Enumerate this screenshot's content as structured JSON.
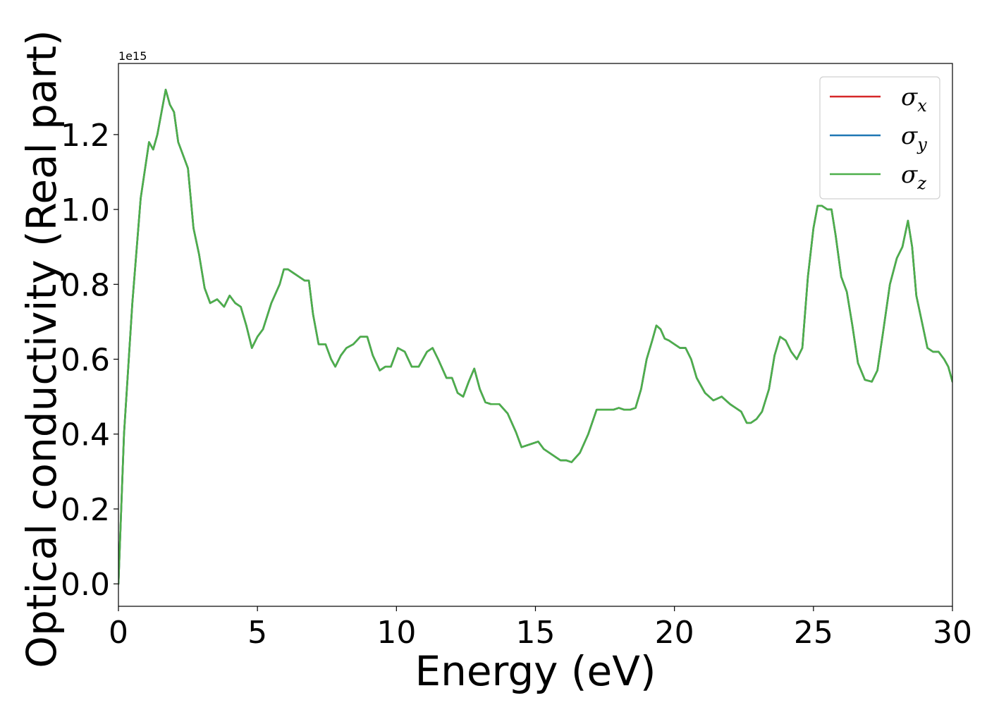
{
  "chart_data": {
    "type": "line",
    "xlabel": "Energy (eV)",
    "ylabel": "Optical conductivity (Real part)",
    "y_offset_text": "1e15",
    "y_scale_factor": 1000000000000000.0,
    "xlim": [
      0,
      30
    ],
    "ylim": [
      -0.06,
      1.39
    ],
    "xticks": [
      0,
      5,
      10,
      15,
      20,
      25,
      30
    ],
    "xtick_labels": [
      "0",
      "5",
      "10",
      "15",
      "20",
      "25",
      "30"
    ],
    "yticks": [
      0.0,
      0.2,
      0.4,
      0.6,
      0.8,
      1.0,
      1.2
    ],
    "ytick_labels": [
      "0.0",
      "0.2",
      "0.4",
      "0.6",
      "0.8",
      "1.0",
      "1.2"
    ],
    "grid": false,
    "legend_position": "top-right",
    "legend": [
      {
        "base": "σ",
        "sub": "x",
        "color": "#d62728"
      },
      {
        "base": "σ",
        "sub": "y",
        "color": "#1f77b4"
      },
      {
        "base": "σ",
        "sub": "z",
        "color": "#4daf4a"
      }
    ],
    "series": [
      {
        "color": "#d62728"
      },
      {
        "color": "#1f77b4"
      },
      {
        "color": "#4daf4a"
      }
    ],
    "x": [
      0,
      0.2,
      0.5,
      0.8,
      1.1,
      1.25,
      1.4,
      1.55,
      1.7,
      1.85,
      2.0,
      2.15,
      2.3,
      2.5,
      2.7,
      2.9,
      3.1,
      3.3,
      3.55,
      3.8,
      4.0,
      4.2,
      4.4,
      4.6,
      4.8,
      5.0,
      5.2,
      5.5,
      5.8,
      5.95,
      6.1,
      6.3,
      6.5,
      6.7,
      6.85,
      7.0,
      7.2,
      7.45,
      7.65,
      7.8,
      8.0,
      8.2,
      8.45,
      8.7,
      8.95,
      9.15,
      9.4,
      9.6,
      9.8,
      10.05,
      10.3,
      10.55,
      10.8,
      11.1,
      11.3,
      11.5,
      11.8,
      12.0,
      12.2,
      12.4,
      12.6,
      12.8,
      13.0,
      13.2,
      13.4,
      13.7,
      14.0,
      14.3,
      14.5,
      14.7,
      14.9,
      15.1,
      15.3,
      15.6,
      15.9,
      16.1,
      16.3,
      16.6,
      16.9,
      17.2,
      17.5,
      17.8,
      18.0,
      18.2,
      18.4,
      18.6,
      18.8,
      19.0,
      19.2,
      19.35,
      19.5,
      19.65,
      19.8,
      20.0,
      20.2,
      20.4,
      20.6,
      20.8,
      21.1,
      21.4,
      21.7,
      22.0,
      22.2,
      22.4,
      22.6,
      22.75,
      22.95,
      23.15,
      23.4,
      23.6,
      23.8,
      24.0,
      24.2,
      24.4,
      24.6,
      24.8,
      25.0,
      25.15,
      25.3,
      25.5,
      25.65,
      25.8,
      26.0,
      26.2,
      26.4,
      26.6,
      26.85,
      27.1,
      27.3,
      27.5,
      27.75,
      28.0,
      28.2,
      28.4,
      28.55,
      28.7,
      28.9,
      29.1,
      29.3,
      29.5,
      29.7,
      29.85,
      30.0
    ],
    "y": [
      0.0,
      0.4,
      0.75,
      1.03,
      1.18,
      1.16,
      1.2,
      1.26,
      1.32,
      1.28,
      1.26,
      1.18,
      1.15,
      1.11,
      0.95,
      0.88,
      0.79,
      0.75,
      0.76,
      0.74,
      0.77,
      0.75,
      0.74,
      0.69,
      0.63,
      0.66,
      0.68,
      0.75,
      0.8,
      0.84,
      0.84,
      0.83,
      0.82,
      0.81,
      0.81,
      0.72,
      0.64,
      0.64,
      0.6,
      0.58,
      0.61,
      0.63,
      0.64,
      0.66,
      0.66,
      0.61,
      0.57,
      0.58,
      0.58,
      0.63,
      0.62,
      0.58,
      0.58,
      0.62,
      0.63,
      0.6,
      0.55,
      0.55,
      0.51,
      0.5,
      0.54,
      0.575,
      0.52,
      0.485,
      0.48,
      0.48,
      0.455,
      0.405,
      0.365,
      0.37,
      0.375,
      0.38,
      0.36,
      0.345,
      0.33,
      0.33,
      0.325,
      0.35,
      0.4,
      0.465,
      0.465,
      0.465,
      0.47,
      0.465,
      0.465,
      0.47,
      0.52,
      0.6,
      0.65,
      0.69,
      0.68,
      0.655,
      0.65,
      0.64,
      0.63,
      0.63,
      0.6,
      0.55,
      0.51,
      0.49,
      0.5,
      0.48,
      0.47,
      0.46,
      0.43,
      0.43,
      0.44,
      0.46,
      0.52,
      0.61,
      0.66,
      0.65,
      0.62,
      0.6,
      0.63,
      0.82,
      0.95,
      1.01,
      1.01,
      1.0,
      1.0,
      0.93,
      0.82,
      0.78,
      0.69,
      0.59,
      0.545,
      0.54,
      0.57,
      0.67,
      0.8,
      0.87,
      0.9,
      0.97,
      0.9,
      0.77,
      0.7,
      0.63,
      0.62,
      0.62,
      0.6,
      0.58,
      0.54
    ]
  }
}
